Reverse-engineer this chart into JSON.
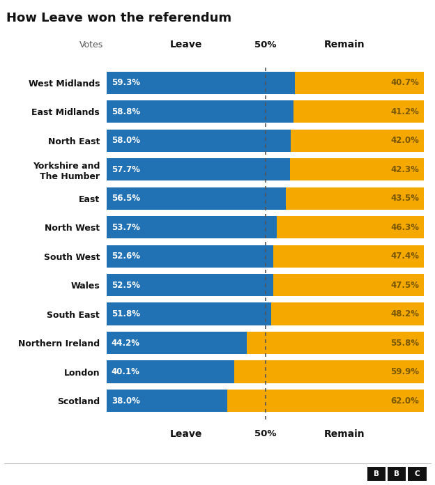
{
  "title": "How Leave won the referendum",
  "regions": [
    "West Midlands",
    "East Midlands",
    "North East",
    "Yorkshire and\nThe Humber",
    "East",
    "North West",
    "South West",
    "Wales",
    "South East",
    "Northern Ireland",
    "London",
    "Scotland"
  ],
  "leave_pct": [
    59.3,
    58.8,
    58.0,
    57.7,
    56.5,
    53.7,
    52.6,
    52.5,
    51.8,
    44.2,
    40.1,
    38.0
  ],
  "remain_pct": [
    40.7,
    41.2,
    42.0,
    42.3,
    43.5,
    46.3,
    47.4,
    47.5,
    48.2,
    55.8,
    59.9,
    62.0
  ],
  "leave_color": "#2171b5",
  "remain_color": "#f5a800",
  "leave_label_color": "#ffffff",
  "remain_label_color": "#7a5800",
  "bg_color": "#ffffff",
  "title_color": "#111111",
  "dotted_line_color": "#555555",
  "bar_height": 0.78
}
